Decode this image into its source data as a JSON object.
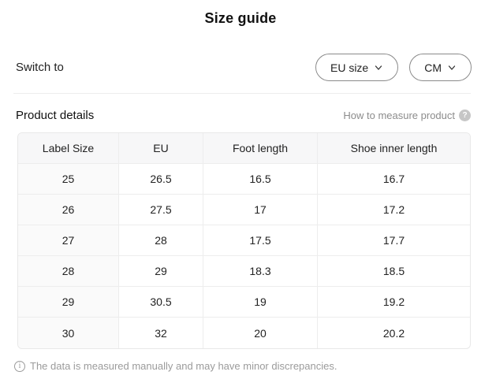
{
  "title": "Size guide",
  "switch_row": {
    "label": "Switch to",
    "size_dropdown": {
      "value": "EU size"
    },
    "unit_dropdown": {
      "value": "CM"
    }
  },
  "product_details": {
    "heading": "Product details",
    "help_link": "How to measure product",
    "help_icon": "question-circle-icon"
  },
  "table": {
    "headers": [
      "Label Size",
      "EU",
      "Foot length",
      "Shoe inner length"
    ],
    "rows": [
      [
        "25",
        "26.5",
        "16.5",
        "16.7"
      ],
      [
        "26",
        "27.5",
        "17",
        "17.2"
      ],
      [
        "27",
        "28",
        "17.5",
        "17.7"
      ],
      [
        "28",
        "29",
        "18.3",
        "18.5"
      ],
      [
        "29",
        "30.5",
        "19",
        "19.2"
      ],
      [
        "30",
        "32",
        "20",
        "20.2"
      ]
    ]
  },
  "footer": {
    "icon": "info-circle-icon",
    "note": "The data is measured manually and may have minor discrepancies."
  },
  "colors": {
    "pill_border": "#8a8a8a",
    "divider": "#ececec",
    "table_border": "#e8e8e8",
    "header_bg": "#f7f7f8",
    "first_col_bg": "#fafafa",
    "gray_text": "#9b9b9b",
    "dark_text": "#1a1a1a"
  }
}
